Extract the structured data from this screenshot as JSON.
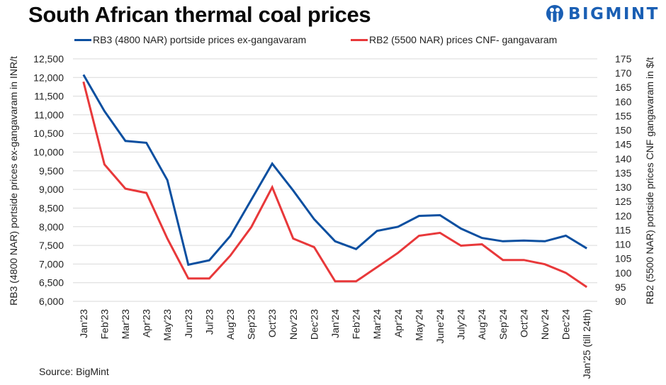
{
  "header": {
    "title": "South African thermal coal prices",
    "logo_text": "BIGMINT",
    "logo_color": "#1a5fb4"
  },
  "footer": {
    "source": "Source: BigMint"
  },
  "chart_data": {
    "type": "line",
    "title": "South African thermal coal prices",
    "xlabel": "",
    "ylabel": "RB3 (4800 NAR) portside prices ex-gangavaram  in INR/t",
    "y2label": "RB2 (5500 NAR) portside prices CNF  gangavaram in $/t",
    "ylim": [
      6000,
      12500
    ],
    "y_ticks": [
      6000,
      6500,
      7000,
      7500,
      8000,
      8500,
      9000,
      9500,
      10000,
      10500,
      11000,
      11500,
      12000,
      12500
    ],
    "y_tick_labels": [
      "6,000",
      "6,500",
      "7,000",
      "7,500",
      "8,000",
      "8,500",
      "9,000",
      "9,500",
      "10,000",
      "10,500",
      "11,000",
      "11,500",
      "12,000",
      "12,500"
    ],
    "y2lim": [
      90,
      175
    ],
    "y2_ticks": [
      90,
      95,
      100,
      105,
      110,
      115,
      120,
      125,
      130,
      135,
      140,
      145,
      150,
      155,
      160,
      165,
      170,
      175
    ],
    "y2_tick_labels": [
      "90",
      "95",
      "100",
      "105",
      "110",
      "115",
      "120",
      "125",
      "130",
      "135",
      "140",
      "145",
      "150",
      "155",
      "160",
      "165",
      "170",
      "175"
    ],
    "grid": true,
    "legend_position": "top",
    "categories": [
      "Jan'23",
      "Feb'23",
      "Mar'23",
      "Apr'23",
      "May'23",
      "Jun'23",
      "Jul'23",
      "Aug'23",
      "Sep'23",
      "Oct'23",
      "Nov'23",
      "Dec'23",
      "Jan'24",
      "Feb'24",
      "Mar'24",
      "Apr'24",
      "May'24",
      "June'24",
      "July'24",
      "Aug'24",
      "Sep'24",
      "Oct'24",
      "Nov'24",
      "Dec'24",
      "Jan'25 (till 24th)"
    ],
    "series": [
      {
        "name": "RB3 (4800 NAR) portside prices ex-gangavaram",
        "axis": "left",
        "color": "#0b4fa0",
        "values": [
          12075,
          11100,
          10300,
          10250,
          9250,
          6980,
          7100,
          7750,
          8720,
          9690,
          8970,
          8200,
          7610,
          7400,
          7890,
          8000,
          8290,
          8310,
          7950,
          7700,
          7610,
          7630,
          7610,
          7760,
          7420
        ]
      },
      {
        "name": "RB2 (5500 NAR) prices CNF- gangavaram",
        "axis": "right",
        "color": "#e8383a",
        "values": [
          167,
          138,
          129.5,
          128,
          112,
          98,
          98,
          106,
          116,
          130,
          112,
          109,
          97,
          97,
          102,
          107,
          113,
          114,
          109.5,
          110,
          104.5,
          104.5,
          103,
          100,
          95
        ]
      }
    ]
  }
}
